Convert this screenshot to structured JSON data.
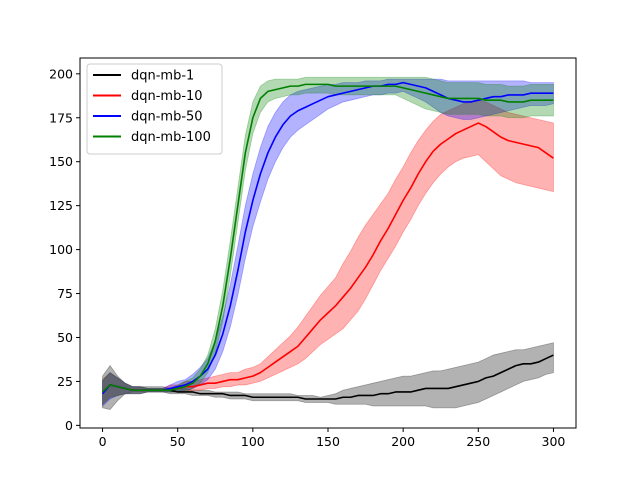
{
  "chart_data": {
    "type": "line",
    "title": "",
    "xlabel": "",
    "ylabel": "",
    "xlim": [
      -15,
      315
    ],
    "ylim": [
      -1.5,
      209
    ],
    "xticks": [
      0,
      50,
      100,
      150,
      200,
      250,
      300
    ],
    "yticks": [
      0,
      25,
      50,
      75,
      100,
      125,
      150,
      175,
      200
    ],
    "grid": false,
    "legend_placement": "top-left",
    "x": [
      0,
      5,
      10,
      15,
      20,
      25,
      30,
      35,
      40,
      45,
      50,
      55,
      60,
      65,
      70,
      75,
      80,
      85,
      90,
      95,
      100,
      105,
      110,
      115,
      120,
      125,
      130,
      135,
      140,
      145,
      150,
      155,
      160,
      165,
      170,
      175,
      180,
      185,
      190,
      195,
      200,
      205,
      210,
      215,
      220,
      225,
      230,
      235,
      240,
      245,
      250,
      255,
      260,
      265,
      270,
      275,
      280,
      285,
      290,
      295,
      300
    ],
    "series": [
      {
        "name": "dqn-mb-1",
        "color": "#000000",
        "values": [
          19,
          23,
          22,
          21,
          20,
          20,
          20,
          20,
          20,
          20,
          19,
          19,
          19,
          18,
          18,
          18,
          18,
          17,
          17,
          17,
          16,
          16,
          16,
          16,
          16,
          16,
          16,
          15,
          15,
          15,
          15,
          15,
          16,
          16,
          17,
          17,
          17,
          18,
          18,
          19,
          19,
          19,
          20,
          21,
          21,
          21,
          21,
          22,
          23,
          24,
          25,
          27,
          28,
          30,
          32,
          34,
          35,
          35,
          36,
          38,
          40
        ],
        "lower": [
          10,
          9,
          14,
          18,
          19,
          19,
          19,
          19,
          19,
          18,
          18,
          18,
          17,
          17,
          17,
          16,
          16,
          15,
          15,
          15,
          14,
          14,
          14,
          14,
          14,
          14,
          14,
          13,
          13,
          13,
          13,
          12,
          12,
          12,
          12,
          12,
          11,
          11,
          11,
          11,
          11,
          11,
          11,
          11,
          10,
          10,
          10,
          10,
          11,
          12,
          13,
          15,
          17,
          19,
          21,
          23,
          25,
          26,
          27,
          29,
          30
        ],
        "upper": [
          28,
          34,
          28,
          24,
          22,
          22,
          22,
          22,
          22,
          21,
          21,
          21,
          20,
          20,
          20,
          19,
          19,
          19,
          19,
          18,
          18,
          18,
          18,
          18,
          18,
          18,
          17,
          17,
          17,
          16,
          17,
          18,
          20,
          21,
          22,
          23,
          24,
          25,
          26,
          27,
          28,
          28,
          29,
          30,
          31,
          31,
          32,
          33,
          34,
          35,
          36,
          38,
          40,
          41,
          42,
          43,
          43,
          44,
          45,
          46,
          47
        ]
      },
      {
        "name": "dqn-mb-10",
        "color": "#ff0000",
        "values": [
          19,
          23,
          22,
          21,
          20,
          20,
          20,
          20,
          20,
          21,
          21,
          22,
          22,
          23,
          24,
          24,
          25,
          26,
          26,
          27,
          28,
          30,
          33,
          36,
          39,
          42,
          45,
          50,
          55,
          60,
          64,
          68,
          73,
          78,
          84,
          90,
          97,
          105,
          112,
          120,
          128,
          135,
          143,
          150,
          156,
          160,
          163,
          166,
          168,
          170,
          172,
          170,
          167,
          164,
          162,
          161,
          160,
          159,
          158,
          155,
          152
        ],
        "lower": [
          12,
          16,
          17,
          18,
          18,
          18,
          19,
          19,
          19,
          19,
          19,
          19,
          20,
          20,
          21,
          21,
          22,
          22,
          23,
          23,
          24,
          25,
          27,
          29,
          31,
          33,
          35,
          38,
          42,
          46,
          49,
          52,
          55,
          60,
          65,
          72,
          80,
          88,
          95,
          102,
          110,
          117,
          125,
          132,
          138,
          143,
          147,
          150,
          152,
          153,
          154,
          150,
          146,
          142,
          140,
          138,
          137,
          136,
          135,
          134,
          133
        ],
        "upper": [
          26,
          30,
          27,
          24,
          22,
          22,
          21,
          21,
          21,
          23,
          23,
          25,
          25,
          26,
          27,
          28,
          29,
          30,
          30,
          32,
          33,
          35,
          39,
          43,
          47,
          51,
          56,
          62,
          68,
          74,
          79,
          84,
          92,
          99,
          107,
          114,
          120,
          126,
          132,
          140,
          147,
          155,
          162,
          168,
          173,
          177,
          179,
          181,
          183,
          184,
          185,
          184,
          182,
          180,
          178,
          177,
          176,
          175,
          174,
          173,
          172
        ]
      },
      {
        "name": "dqn-mb-50",
        "color": "#0000ff",
        "values": [
          18,
          23,
          22,
          21,
          20,
          20,
          20,
          20,
          20,
          21,
          22,
          23,
          25,
          28,
          32,
          40,
          52,
          68,
          88,
          110,
          128,
          143,
          155,
          164,
          171,
          176,
          179,
          181,
          183,
          185,
          187,
          188,
          189,
          190,
          191,
          192,
          193,
          193,
          194,
          194,
          195,
          194,
          193,
          192,
          190,
          188,
          186,
          185,
          184,
          184,
          185,
          186,
          187,
          187,
          188,
          188,
          188,
          189,
          189,
          189,
          189
        ],
        "lower": [
          11,
          15,
          17,
          18,
          18,
          18,
          19,
          19,
          19,
          19,
          19,
          20,
          21,
          23,
          26,
          32,
          42,
          56,
          74,
          95,
          113,
          127,
          140,
          150,
          158,
          164,
          168,
          171,
          174,
          177,
          180,
          182,
          184,
          185,
          186,
          187,
          188,
          188,
          189,
          189,
          190,
          188,
          186,
          184,
          181,
          178,
          176,
          175,
          174,
          174,
          175,
          176,
          177,
          178,
          179,
          180,
          181,
          182,
          182,
          182,
          183
        ],
        "upper": [
          25,
          30,
          27,
          24,
          22,
          22,
          21,
          21,
          21,
          23,
          25,
          26,
          29,
          33,
          38,
          48,
          62,
          80,
          102,
          125,
          143,
          158,
          170,
          178,
          184,
          188,
          190,
          191,
          192,
          193,
          194,
          194,
          195,
          195,
          195,
          196,
          196,
          196,
          197,
          197,
          197,
          197,
          197,
          197,
          197,
          197,
          196,
          196,
          196,
          196,
          196,
          196,
          196,
          196,
          196,
          196,
          196,
          195,
          195,
          195,
          195
        ]
      },
      {
        "name": "dqn-mb-100",
        "color": "#008000",
        "values": [
          19,
          23,
          22,
          21,
          20,
          20,
          20,
          20,
          20,
          20,
          21,
          22,
          24,
          28,
          35,
          48,
          68,
          95,
          125,
          155,
          175,
          186,
          190,
          191,
          192,
          193,
          193,
          194,
          194,
          194,
          194,
          193,
          193,
          193,
          193,
          193,
          193,
          193,
          193,
          193,
          192,
          191,
          190,
          189,
          188,
          187,
          186,
          186,
          186,
          186,
          186,
          185,
          185,
          185,
          184,
          184,
          184,
          185,
          185,
          185,
          185
        ],
        "lower": [
          12,
          16,
          17,
          18,
          18,
          18,
          19,
          19,
          19,
          19,
          19,
          19,
          21,
          24,
          30,
          41,
          59,
          85,
          115,
          145,
          166,
          178,
          184,
          186,
          187,
          188,
          188,
          189,
          189,
          189,
          189,
          188,
          188,
          188,
          188,
          188,
          188,
          188,
          188,
          188,
          186,
          184,
          182,
          180,
          179,
          178,
          177,
          177,
          177,
          177,
          177,
          176,
          176,
          176,
          175,
          175,
          175,
          176,
          176,
          176,
          176
        ],
        "upper": [
          26,
          30,
          27,
          24,
          22,
          22,
          21,
          21,
          21,
          21,
          23,
          25,
          27,
          32,
          40,
          55,
          77,
          105,
          135,
          165,
          184,
          193,
          196,
          197,
          197,
          197,
          197,
          198,
          198,
          198,
          198,
          198,
          198,
          198,
          198,
          198,
          198,
          198,
          198,
          198,
          198,
          198,
          198,
          198,
          197,
          196,
          195,
          195,
          195,
          195,
          195,
          194,
          194,
          194,
          193,
          193,
          193,
          194,
          194,
          194,
          194
        ]
      }
    ]
  }
}
